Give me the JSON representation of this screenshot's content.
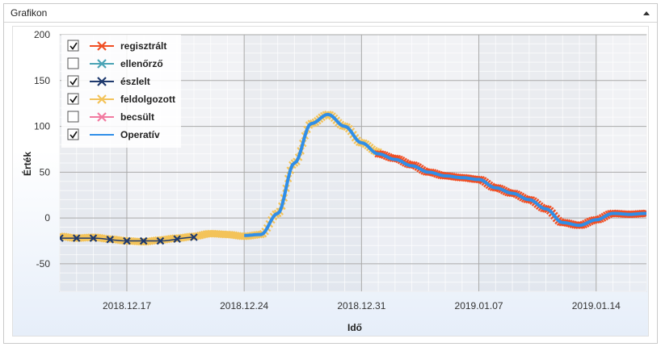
{
  "panel": {
    "title": "Grafikon",
    "collapse_icon": "triangle-up-icon"
  },
  "legend": {
    "items": [
      {
        "label": "regisztrált",
        "checked": true,
        "color": "#f04e23",
        "marker": "x"
      },
      {
        "label": "ellenőrző",
        "checked": false,
        "color": "#4aa3b5",
        "marker": "x"
      },
      {
        "label": "észlelt",
        "checked": true,
        "color": "#1f3a6e",
        "marker": "x"
      },
      {
        "label": "feldolgozott",
        "checked": true,
        "color": "#f3c35a",
        "marker": "x"
      },
      {
        "label": "becsült",
        "checked": false,
        "color": "#f27aa0",
        "marker": "x"
      },
      {
        "label": "Operatív",
        "checked": true,
        "color": "#2f8ee8",
        "marker": "line"
      }
    ]
  },
  "chart_data": {
    "type": "line",
    "xlabel": "Idő",
    "ylabel": "Érték",
    "ylim": [
      -80,
      200
    ],
    "yticks": [
      -50,
      0,
      50,
      100,
      150,
      200
    ],
    "xlim": [
      "2018-12-13",
      "2019-01-17"
    ],
    "xticks": [
      "2018.12.17",
      "2018.12.24",
      "2018.12.31",
      "2019.01.07",
      "2019.01.14"
    ],
    "grid": true,
    "legend_position": "top-left",
    "series": [
      {
        "name": "feldolgozott",
        "color": "#f3c35a",
        "x": [
          "2018-12-13",
          "2018-12-14",
          "2018-12-15",
          "2018-12-16",
          "2018-12-17",
          "2018-12-18",
          "2018-12-19",
          "2018-12-20",
          "2018-12-21",
          "2018-12-22",
          "2018-12-23",
          "2018-12-24",
          "2018-12-25",
          "2018-12-26",
          "2018-12-27",
          "2018-12-28",
          "2018-12-29",
          "2018-12-30",
          "2018-12-31",
          "2019-01-01"
        ],
        "y": [
          -20,
          -22,
          -21,
          -23,
          -25,
          -26,
          -24,
          -22,
          -20,
          -17,
          -18,
          -20,
          -18,
          5,
          60,
          103,
          113,
          100,
          82,
          72
        ]
      },
      {
        "name": "regisztrált",
        "color": "#f04e23",
        "x": [
          "2019-01-01",
          "2019-01-02",
          "2019-01-03",
          "2019-01-04",
          "2019-01-05",
          "2019-01-06",
          "2019-01-07",
          "2019-01-08",
          "2019-01-09",
          "2019-01-10",
          "2019-01-11",
          "2019-01-12",
          "2019-01-13",
          "2019-01-14",
          "2019-01-15",
          "2019-01-16",
          "2019-01-17"
        ],
        "y": [
          70,
          65,
          58,
          50,
          46,
          44,
          42,
          33,
          27,
          20,
          10,
          -5,
          -8,
          -2,
          5,
          4,
          5
        ]
      },
      {
        "name": "észlelt",
        "color": "#1f3a6e",
        "x": [
          "2018-12-13",
          "2018-12-15",
          "2018-12-17",
          "2018-12-19",
          "2018-12-21"
        ],
        "y": [
          -22,
          -22,
          -25,
          -25,
          -21
        ]
      },
      {
        "name": "Operatív",
        "color": "#2f8ee8",
        "x": [
          "2018-12-24",
          "2018-12-25",
          "2018-12-26",
          "2018-12-27",
          "2018-12-28",
          "2018-12-29",
          "2018-12-30",
          "2018-12-31",
          "2019-01-01",
          "2019-01-02",
          "2019-01-03",
          "2019-01-04",
          "2019-01-05",
          "2019-01-06",
          "2019-01-07",
          "2019-01-08",
          "2019-01-09",
          "2019-01-10",
          "2019-01-11",
          "2019-01-12",
          "2019-01-13",
          "2019-01-14",
          "2019-01-15",
          "2019-01-16",
          "2019-01-17"
        ],
        "y": [
          -19,
          -18,
          5,
          60,
          103,
          113,
          100,
          82,
          70,
          64,
          57,
          50,
          46,
          44,
          42,
          33,
          27,
          20,
          10,
          -5,
          -8,
          -2,
          5,
          4,
          5
        ]
      }
    ]
  }
}
